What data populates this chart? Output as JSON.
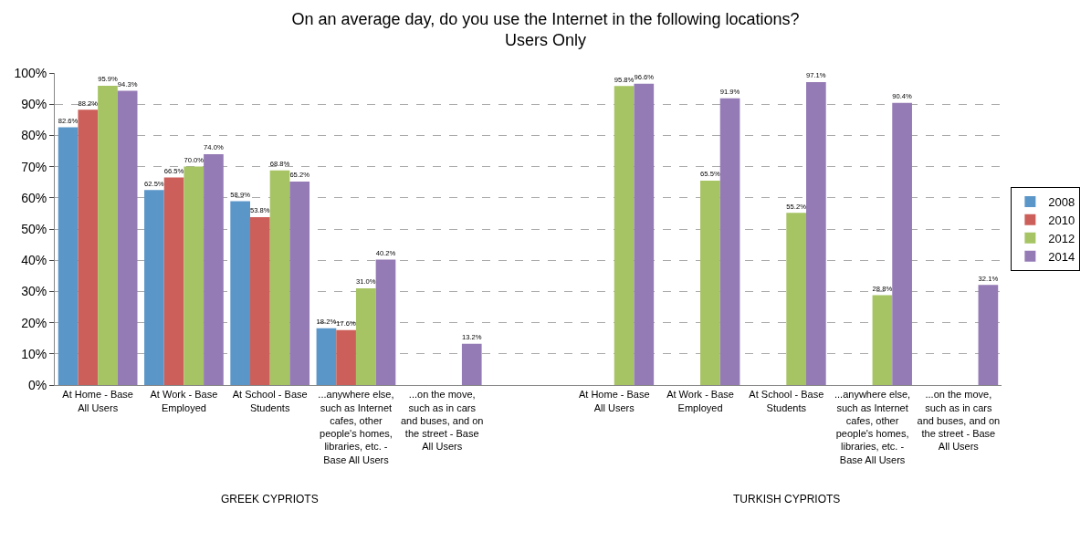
{
  "chart_data": {
    "type": "bar",
    "title": "On an average day, do you use the Internet in the following locations?",
    "subtitle": "Users Only",
    "categories": [
      "At Home - Base All Users",
      "At Work - Base Employed",
      "At School - Base Students",
      "...anywhere else, such as Internet cafes, other people's homes, libraries, etc. - Base All Users",
      "...on the move, such as in cars and buses, and on the street - Base All Users",
      null,
      "At Home - Base All Users",
      "At Work - Base Employed",
      "At School - Base Students",
      "...anywhere else, such as Internet cafes, other people's homes, libraries, etc. - Base All Users",
      "...on the move, such as in cars and buses, and on the street - Base All Users"
    ],
    "series": [
      {
        "name": "2008",
        "color": "#5b96c9",
        "values": [
          82.6,
          62.5,
          58.9,
          18.2,
          null,
          null,
          null,
          null,
          null,
          null,
          null
        ],
        "value_labels": [
          "82.6%",
          "62.5%",
          "58.9%",
          "18.2%",
          null,
          null,
          null,
          null,
          null,
          null,
          null
        ]
      },
      {
        "name": "2010",
        "color": "#cd5f5a",
        "values": [
          88.2,
          66.5,
          53.8,
          17.6,
          null,
          null,
          null,
          null,
          null,
          null,
          null
        ],
        "value_labels": [
          "88.2%",
          "66.5%",
          "53.8%",
          "17.6%",
          null,
          null,
          null,
          null,
          null,
          null,
          null
        ]
      },
      {
        "name": "2012",
        "color": "#a6c463",
        "values": [
          95.9,
          70.0,
          68.8,
          31.0,
          null,
          null,
          95.8,
          65.5,
          55.2,
          28.8,
          null
        ],
        "value_labels": [
          "95.9%",
          "70.0%",
          "68.8%",
          "31.0%",
          null,
          null,
          "95.8%",
          "65.5%",
          "55.2%",
          "28.8%",
          null
        ]
      },
      {
        "name": "2014",
        "color": "#957bb5",
        "values": [
          94.3,
          74.0,
          65.2,
          40.2,
          13.2,
          null,
          96.6,
          91.9,
          97.1,
          90.4,
          32.1
        ],
        "value_labels": [
          "94.3%",
          "74.0%",
          "65.2%",
          "40.2%",
          "13.2%",
          null,
          "96.6%",
          "91.9%",
          "97.1%",
          "90.4%",
          "32.1%"
        ]
      }
    ],
    "ylim": [
      0,
      100
    ],
    "yticks": [
      {
        "value": 0,
        "label": "0%"
      },
      {
        "value": 10,
        "label": "10%"
      },
      {
        "value": 20,
        "label": "20%"
      },
      {
        "value": 30,
        "label": "30%"
      },
      {
        "value": 40,
        "label": "40%"
      },
      {
        "value": 50,
        "label": "50%"
      },
      {
        "value": 60,
        "label": "60%"
      },
      {
        "value": 70,
        "label": "70%"
      },
      {
        "value": 80,
        "label": "80%"
      },
      {
        "value": 90,
        "label": "90%"
      },
      {
        "value": 100,
        "label": "100%"
      }
    ],
    "grid": "y",
    "legend": "right",
    "annotations": [
      "GREEK CYPRIOTS",
      "TURKISH CYPRIOTS"
    ]
  }
}
